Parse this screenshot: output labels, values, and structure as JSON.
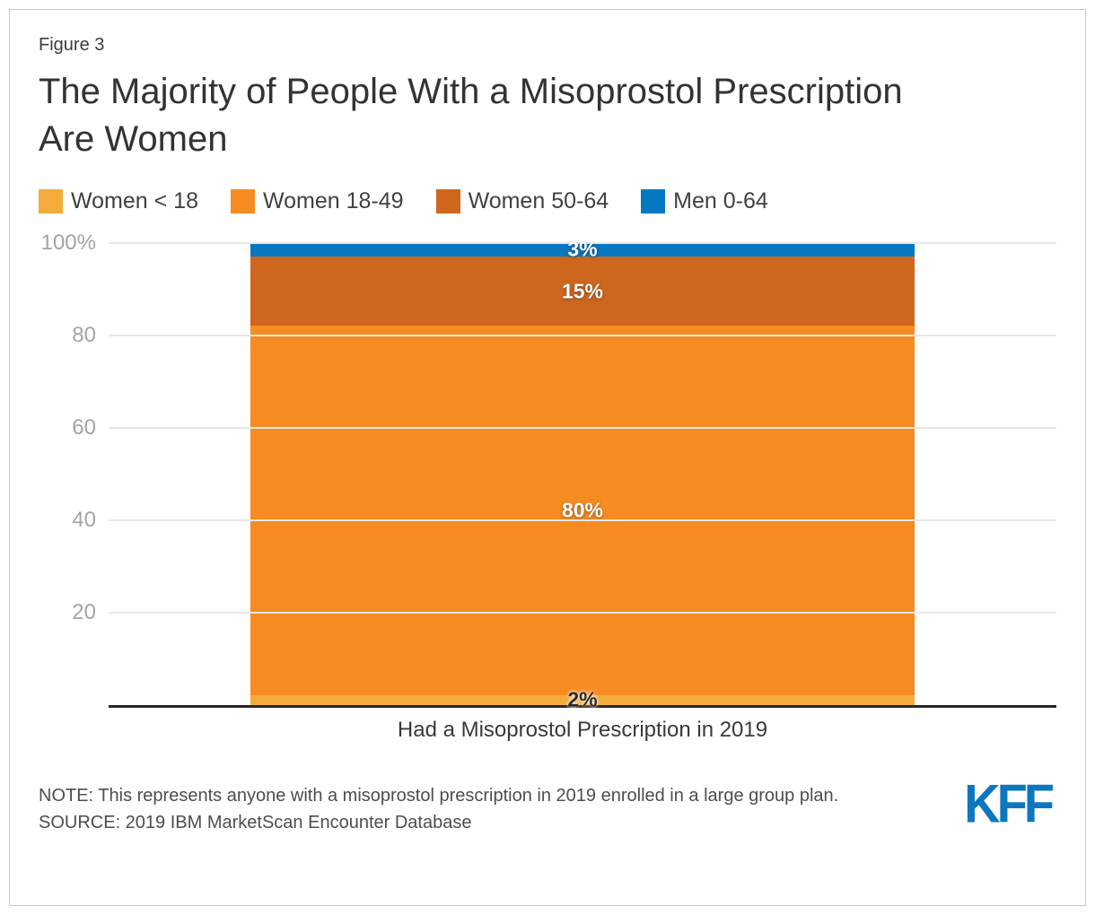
{
  "figure_label": "Figure 3",
  "title": "The Majority of People With a Misoprostol Prescription Are Women",
  "chart_data": {
    "type": "bar",
    "stacked": true,
    "orientation": "vertical",
    "title": "The Majority of People With a Misoprostol Prescription Are Women",
    "categories": [
      "Had a Misoprostol Prescription in 2019"
    ],
    "series": [
      {
        "name": "Women < 18",
        "values": [
          2
        ],
        "data_label": "2%",
        "color": "#F3AC3C",
        "label_style": "dark"
      },
      {
        "name": "Women 18-49",
        "values": [
          80
        ],
        "data_label": "80%",
        "color": "#F68B21",
        "label_style": "light"
      },
      {
        "name": "Women 50-64",
        "values": [
          15
        ],
        "data_label": "15%",
        "color": "#CE671D",
        "label_style": "light"
      },
      {
        "name": "Men 0-64",
        "values": [
          3
        ],
        "data_label": "3%",
        "color": "#0677C1",
        "label_style": "light"
      }
    ],
    "ylim": [
      0,
      100
    ],
    "yticks": [
      {
        "label": "100%",
        "value": 100
      },
      {
        "label": "80",
        "value": 80
      },
      {
        "label": "60",
        "value": 60
      },
      {
        "label": "40",
        "value": 40
      },
      {
        "label": "20",
        "value": 20
      }
    ],
    "grid": true,
    "legend_position": "top",
    "xlabel": "Had a Misoprostol Prescription in 2019",
    "ylabel": ""
  },
  "axis": {
    "x_label": "Had a Misoprostol Prescription in 2019"
  },
  "footer": {
    "note": "NOTE: This represents anyone with a misoprostol prescription in 2019 enrolled in a large group plan.",
    "source": "SOURCE: 2019 IBM MarketScan Encounter Database",
    "logo_text": "KFF",
    "logo_color": "#0C77BD"
  },
  "colors": {
    "title_text": "#333333",
    "axis_line": "#29241f",
    "gridline": "#e7e7e7",
    "ytick_text": "#a4a4a4",
    "label_light": "#ffffff",
    "label_dark": "#2b2b2b"
  }
}
